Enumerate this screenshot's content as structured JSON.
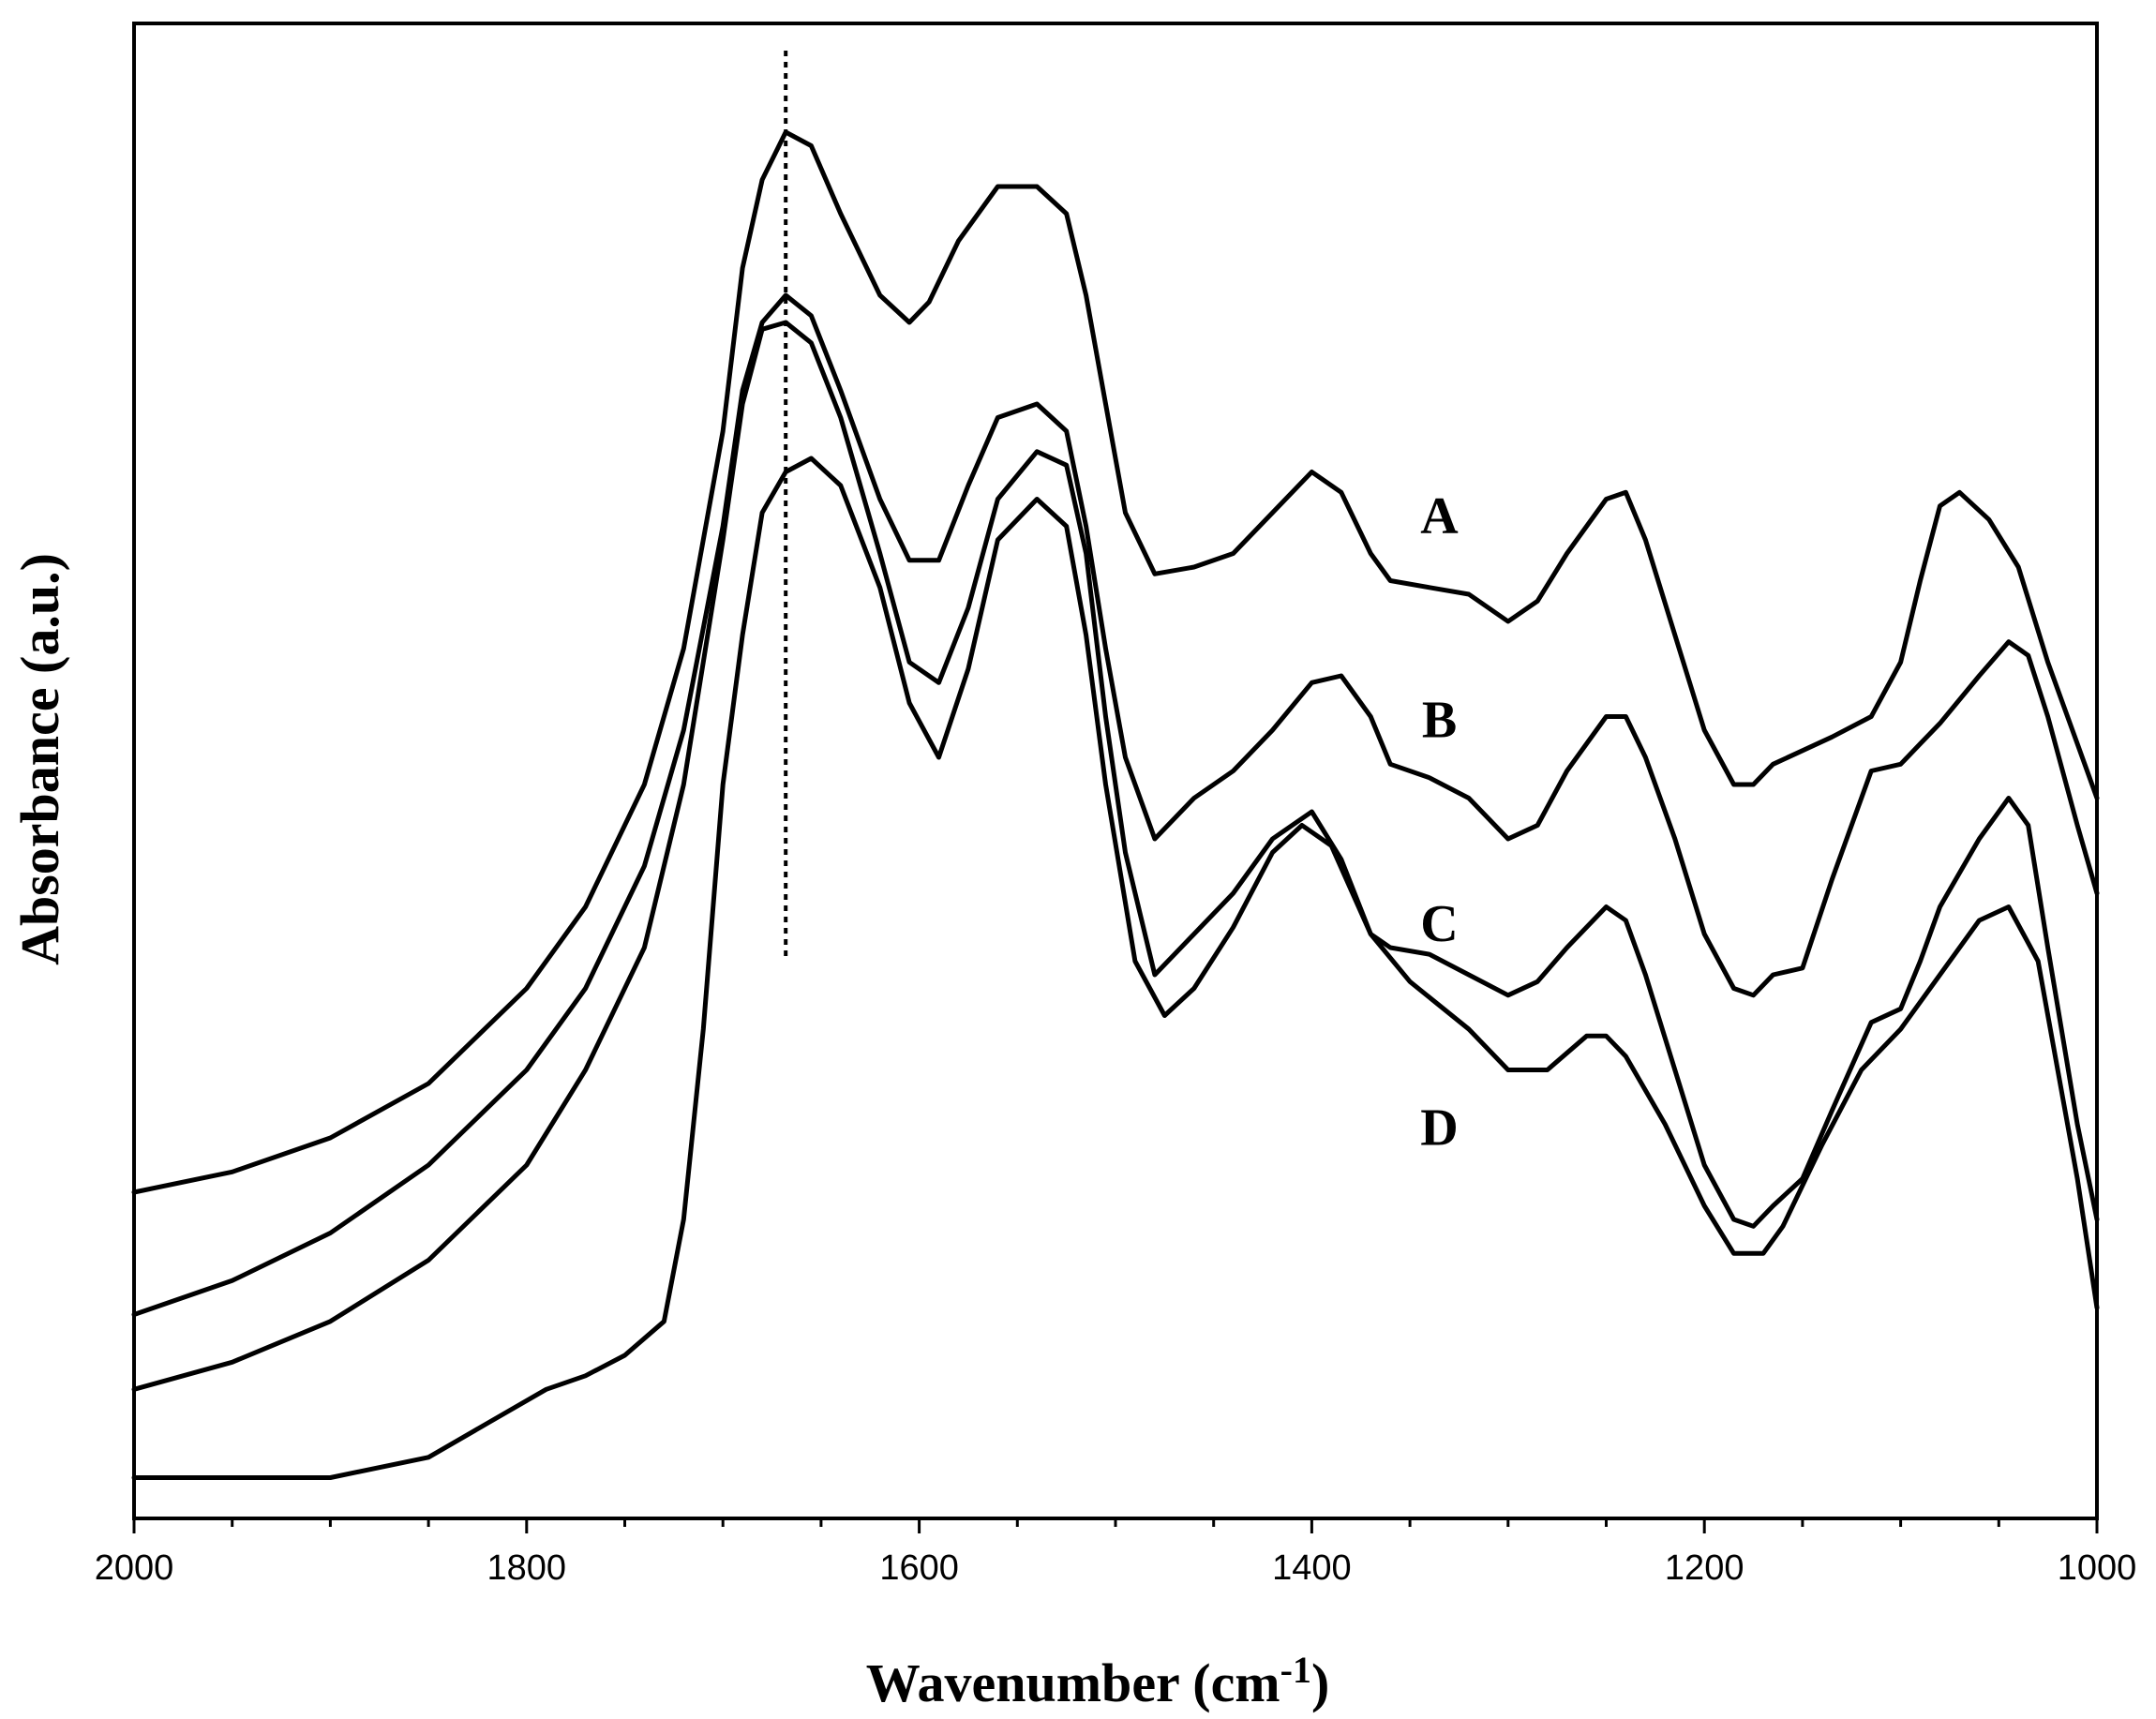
{
  "chart_data": {
    "type": "line",
    "title": "",
    "xlabel": "Wavenumber (cm",
    "xlabel_sup": "-1",
    "xlabel_close": ")",
    "ylabel": "Absorbance (a.u.)",
    "xlim": [
      2000,
      1000
    ],
    "x_reversed": true,
    "ylim": [
      0,
      11
    ],
    "y_ticks_labeled": false,
    "grid": false,
    "legend": "inline labels",
    "x_ticks": [
      2000,
      1800,
      1600,
      1400,
      1200,
      1000
    ],
    "x_tick_labels": [
      "2000",
      "1800",
      "1600",
      "1400",
      "1200",
      "1000"
    ],
    "reference_line_x": 1668,
    "series": [
      {
        "name": "A",
        "label_at": [
          1335,
          7.25
        ],
        "x": [
          2000,
          1950,
          1900,
          1850,
          1800,
          1770,
          1740,
          1720,
          1700,
          1690,
          1680,
          1668,
          1655,
          1640,
          1620,
          1605,
          1595,
          1580,
          1560,
          1540,
          1525,
          1515,
          1505,
          1495,
          1480,
          1460,
          1440,
          1420,
          1400,
          1385,
          1370,
          1360,
          1340,
          1320,
          1300,
          1285,
          1270,
          1250,
          1240,
          1230,
          1215,
          1200,
          1185,
          1175,
          1165,
          1150,
          1135,
          1115,
          1100,
          1090,
          1080,
          1070,
          1055,
          1040,
          1025,
          1010,
          1000
        ],
        "y": [
          2.4,
          2.55,
          2.8,
          3.2,
          3.9,
          4.5,
          5.4,
          6.4,
          8.0,
          9.2,
          9.85,
          10.2,
          10.1,
          9.6,
          9.0,
          8.8,
          8.95,
          9.4,
          9.8,
          9.8,
          9.6,
          9.0,
          8.2,
          7.4,
          6.95,
          7.0,
          7.1,
          7.4,
          7.7,
          7.55,
          7.1,
          6.9,
          6.85,
          6.8,
          6.6,
          6.75,
          7.1,
          7.5,
          7.55,
          7.2,
          6.5,
          5.8,
          5.4,
          5.4,
          5.55,
          5.65,
          5.75,
          5.9,
          6.3,
          6.9,
          7.45,
          7.55,
          7.35,
          7.0,
          6.3,
          5.7,
          5.3
        ]
      },
      {
        "name": "B",
        "label_at": [
          1335,
          5.75
        ],
        "x": [
          2000,
          1950,
          1900,
          1850,
          1800,
          1770,
          1740,
          1720,
          1700,
          1690,
          1680,
          1668,
          1655,
          1640,
          1620,
          1605,
          1590,
          1575,
          1560,
          1540,
          1525,
          1515,
          1505,
          1495,
          1480,
          1460,
          1440,
          1420,
          1400,
          1385,
          1370,
          1360,
          1340,
          1320,
          1300,
          1285,
          1270,
          1250,
          1240,
          1230,
          1215,
          1200,
          1185,
          1175,
          1165,
          1150,
          1135,
          1115,
          1100,
          1090,
          1080,
          1060,
          1045,
          1035,
          1025,
          1010,
          1000
        ],
        "y": [
          1.5,
          1.75,
          2.1,
          2.6,
          3.3,
          3.9,
          4.8,
          5.8,
          7.3,
          8.3,
          8.8,
          9.0,
          8.85,
          8.3,
          7.5,
          7.05,
          7.05,
          7.6,
          8.1,
          8.2,
          8.0,
          7.3,
          6.4,
          5.6,
          5.0,
          5.3,
          5.5,
          5.8,
          6.15,
          6.2,
          5.9,
          5.55,
          5.45,
          5.3,
          5.0,
          5.1,
          5.5,
          5.9,
          5.9,
          5.6,
          5.0,
          4.3,
          3.9,
          3.85,
          4.0,
          4.05,
          4.7,
          5.5,
          5.55,
          5.7,
          5.85,
          6.2,
          6.45,
          6.35,
          5.9,
          5.1,
          4.6
        ]
      },
      {
        "name": "C",
        "label_at": [
          1335,
          4.25
        ],
        "x": [
          2000,
          1950,
          1900,
          1850,
          1800,
          1770,
          1740,
          1720,
          1700,
          1690,
          1680,
          1668,
          1655,
          1640,
          1620,
          1605,
          1590,
          1575,
          1560,
          1540,
          1525,
          1515,
          1505,
          1495,
          1480,
          1460,
          1440,
          1420,
          1400,
          1385,
          1370,
          1360,
          1340,
          1320,
          1300,
          1285,
          1270,
          1250,
          1240,
          1230,
          1215,
          1200,
          1185,
          1175,
          1165,
          1150,
          1135,
          1115,
          1100,
          1090,
          1080,
          1060,
          1045,
          1035,
          1025,
          1010,
          1000
        ],
        "y": [
          0.95,
          1.15,
          1.45,
          1.9,
          2.6,
          3.3,
          4.2,
          5.4,
          7.2,
          8.2,
          8.75,
          8.8,
          8.65,
          8.1,
          7.1,
          6.3,
          6.15,
          6.7,
          7.5,
          7.85,
          7.75,
          7.1,
          5.9,
          4.9,
          4.0,
          4.3,
          4.6,
          5.0,
          5.2,
          4.85,
          4.3,
          4.2,
          4.15,
          4.0,
          3.85,
          3.95,
          4.2,
          4.5,
          4.4,
          4.0,
          3.3,
          2.6,
          2.2,
          2.15,
          2.3,
          2.5,
          3.0,
          3.65,
          3.75,
          4.1,
          4.5,
          5.0,
          5.3,
          5.1,
          4.2,
          2.9,
          2.2
        ]
      },
      {
        "name": "D",
        "label_at": [
          1335,
          2.75
        ],
        "x": [
          2000,
          1950,
          1900,
          1850,
          1820,
          1790,
          1770,
          1750,
          1730,
          1720,
          1710,
          1700,
          1690,
          1680,
          1668,
          1655,
          1640,
          1620,
          1605,
          1590,
          1575,
          1560,
          1540,
          1525,
          1515,
          1505,
          1490,
          1475,
          1460,
          1440,
          1420,
          1405,
          1390,
          1370,
          1350,
          1320,
          1300,
          1280,
          1260,
          1250,
          1240,
          1220,
          1200,
          1185,
          1170,
          1160,
          1140,
          1120,
          1100,
          1080,
          1060,
          1045,
          1030,
          1010,
          1000
        ],
        "y": [
          0.3,
          0.3,
          0.3,
          0.45,
          0.7,
          0.95,
          1.05,
          1.2,
          1.45,
          2.2,
          3.6,
          5.4,
          6.5,
          7.4,
          7.7,
          7.8,
          7.6,
          6.85,
          6.0,
          5.6,
          6.25,
          7.2,
          7.5,
          7.3,
          6.5,
          5.4,
          4.1,
          3.7,
          3.9,
          4.35,
          4.9,
          5.1,
          4.95,
          4.3,
          3.95,
          3.6,
          3.3,
          3.3,
          3.55,
          3.55,
          3.4,
          2.9,
          2.3,
          1.95,
          1.95,
          2.15,
          2.75,
          3.3,
          3.6,
          4.0,
          4.4,
          4.5,
          4.1,
          2.5,
          1.55
        ]
      }
    ]
  }
}
